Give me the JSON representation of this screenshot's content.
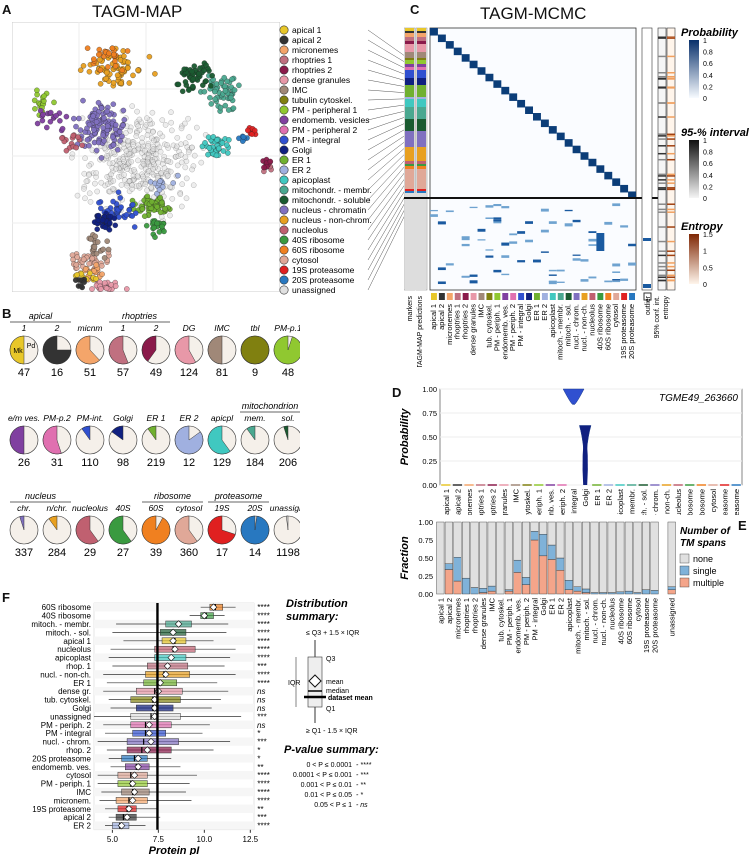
{
  "panel_letters": {
    "A": "A",
    "B": "B",
    "C": "C",
    "D": "D",
    "E": "E",
    "F": "F"
  },
  "tagm_map_title": "TAGM-MAP",
  "tagm_mcmc_title": "TAGM-MCMC",
  "legend": [
    {
      "label": "apical 1",
      "color": "#e8c72a"
    },
    {
      "label": "apical 2",
      "color": "#333333"
    },
    {
      "label": "micronemes",
      "color": "#f4a56a"
    },
    {
      "label": "rhoptries 1",
      "color": "#c07080"
    },
    {
      "label": "rhoptries 2",
      "color": "#8a1a4a"
    },
    {
      "label": "dense granules",
      "color": "#e898a8"
    },
    {
      "label": "IMC",
      "color": "#a08878"
    },
    {
      "label": "tubulin cytoskel.",
      "color": "#808010"
    },
    {
      "label": "PM - peripheral 1",
      "color": "#90c830"
    },
    {
      "label": "endomemb. vesicles",
      "color": "#8040a0"
    },
    {
      "label": "PM - peripheral 2",
      "color": "#e070b0"
    },
    {
      "label": "PM - integral",
      "color": "#3050d0"
    },
    {
      "label": "Golgi",
      "color": "#102080"
    },
    {
      "label": "ER 1",
      "color": "#70b030"
    },
    {
      "label": "ER 2",
      "color": "#a0b0e0"
    },
    {
      "label": "apicoplast",
      "color": "#40c8c0"
    },
    {
      "label": "mitochondr. - membr.",
      "color": "#4aa890"
    },
    {
      "label": "mitochondr. - soluble",
      "color": "#1a5a30"
    },
    {
      "label": "nucleus - chromatin",
      "color": "#8070c0"
    },
    {
      "label": "nucleus - non-chrom.",
      "color": "#e8a020"
    },
    {
      "label": "nucleolus",
      "color": "#c06070"
    },
    {
      "label": "40S ribosome",
      "color": "#3a9a40"
    },
    {
      "label": "60S ribosome",
      "color": "#f08020"
    },
    {
      "label": "cytosol",
      "color": "#e0a898"
    },
    {
      "label": "19S proteasome",
      "color": "#e02020"
    },
    {
      "label": "20S proteasome",
      "color": "#2878c0"
    },
    {
      "label": "unassigned",
      "color": "#e0e0e0"
    }
  ],
  "panel_b": {
    "pies": [
      {
        "label": "1",
        "count": "47",
        "color": "#e8c72a",
        "frac": 0.5,
        "inner": [
          "Mk",
          "Pd"
        ]
      },
      {
        "label": "2",
        "count": "16",
        "color": "#333333",
        "frac": 0.75
      },
      {
        "label": "micnm",
        "count": "51",
        "color": "#f4a56a",
        "frac": 0.62
      },
      {
        "label": "1",
        "count": "57",
        "color": "#c07080",
        "frac": 0.56
      },
      {
        "label": "2",
        "count": "49",
        "color": "#8a1a4a",
        "frac": 0.4
      },
      {
        "label": "DG",
        "count": "124",
        "color": "#e898a8",
        "frac": 0.58
      },
      {
        "label": "IMC",
        "count": "81",
        "color": "#a08878",
        "frac": 0.5
      },
      {
        "label": "tbl",
        "count": "9",
        "color": "#808010",
        "frac": 1.0
      },
      {
        "label": "PM-p.1",
        "count": "48",
        "color": "#90c830",
        "frac": 0.95
      },
      {
        "label": "e/m ves.",
        "count": "26",
        "color": "#8040a0",
        "frac": 0.5
      },
      {
        "label": "PM-p.2",
        "count": "31",
        "color": "#e070b0",
        "frac": 0.55
      },
      {
        "label": "PM-int.",
        "count": "110",
        "color": "#3050d0",
        "frac": 0.1
      },
      {
        "label": "Golgi",
        "count": "98",
        "color": "#102080",
        "frac": 0.15
      },
      {
        "label": "ER 1",
        "count": "219",
        "color": "#70b030",
        "frac": 0.1
      },
      {
        "label": "ER 2",
        "count": "12",
        "color": "#a0b0e0",
        "frac": 0.85
      },
      {
        "label": "apicpl",
        "count": "129",
        "color": "#40c8c0",
        "frac": 0.6
      },
      {
        "label": "mem.",
        "count": "184",
        "color": "#4aa890",
        "frac": 0.1
      },
      {
        "label": "sol.",
        "count": "206",
        "color": "#1a5a30",
        "frac": 0.05
      },
      {
        "label": "chr.",
        "count": "337",
        "color": "#8070c0",
        "frac": 0.05
      },
      {
        "label": "n/chr.",
        "count": "284",
        "color": "#e8a020",
        "frac": 0.1
      },
      {
        "label": "nucleolus",
        "count": "29",
        "color": "#c06070",
        "frac": 0.6
      },
      {
        "label": "40S",
        "count": "27",
        "color": "#3a9a40",
        "frac": 0.6
      },
      {
        "label": "60S",
        "count": "39",
        "color": "#f08020",
        "frac": 0.92
      },
      {
        "label": "cytosol",
        "count": "360",
        "color": "#e0a898",
        "frac": 0.6
      },
      {
        "label": "19S",
        "count": "17",
        "color": "#e02020",
        "frac": 0.7
      },
      {
        "label": "20S",
        "count": "14",
        "color": "#2878c0",
        "frac": 0.98
      },
      {
        "label": "unassign.",
        "count": "1198",
        "color": "#e0e0e0",
        "frac": 0.02
      }
    ],
    "groups": {
      "apical": "apical",
      "rhoptries": "rhoptries",
      "mitochondrion": "mitochondrion",
      "nucleus": "nucleus",
      "ribosome": "ribosome",
      "proteasome": "proteasome"
    }
  },
  "panel_c": {
    "bottom_labels": [
      "apical 1",
      "apical 2",
      "micronemes",
      "rhoptries 1",
      "rhoptries 2",
      "dense granules",
      "IMC",
      "tub. cytoskel.",
      "PM - periph. 1",
      "endomemb. ves.",
      "PM - periph. 2",
      "PM - integral",
      "Golgi",
      "ER 1",
      "ER 2",
      "apicoplast",
      "mitoch. - membr.",
      "mitoch. - sol.",
      "nucl. - chrom.",
      "nucl. - non-ch.",
      "nucleolus",
      "40S ribosome",
      "60S ribosome",
      "cytosol",
      "19S proteasome",
      "20S proteasome"
    ],
    "left_labels": [
      "markers",
      "TAGM-MAP predictions"
    ],
    "right_labels": [
      "outlier",
      "95% conf. int.",
      "entropy"
    ],
    "legend": {
      "prob_title": "Probability",
      "prob_ticks": [
        "1",
        "0.8",
        "0.6",
        "0.4",
        "0.2",
        "0"
      ],
      "ci_title": "95-% interval",
      "ci_ticks": [
        "1",
        "0.8",
        "0.6",
        "0.4",
        "0.2",
        "0"
      ],
      "ent_title": "Entropy",
      "ent_ticks": [
        "1.5",
        "1",
        "0.5",
        "0"
      ]
    }
  },
  "chart_data": [
    {
      "type": "violin",
      "id": "D",
      "title": "TGME49_263660",
      "ylabel": "Probability",
      "ylim": [
        0,
        1
      ],
      "yticks": [
        "1.00",
        "0.75",
        "0.50",
        "0.25",
        "0.00"
      ],
      "categories": [
        "apical 1",
        "apical 2",
        "micronemes",
        "rhoptries 1",
        "rhoptries 2",
        "dense granules",
        "IMC",
        "tub. cytoskel.",
        "PM - periph. 1",
        "endomemb. ves.",
        "PM - periph. 2",
        "PM - integral",
        "Golgi",
        "ER 1",
        "ER 2",
        "apicoplast",
        "mitoch. - membr.",
        "mitoch. - sol.",
        "nucl. - chrom.",
        "nucl. - non-ch.",
        "nucleolus",
        "40S ribosome",
        "60S ribosome",
        "cytosol",
        "19S proteasome",
        "20S proteasome"
      ],
      "peaks": {
        "PM - integral": [
          0.85,
          1.0
        ],
        "Golgi": [
          0.0,
          0.62
        ]
      }
    },
    {
      "type": "bar",
      "id": "E",
      "stacked": true,
      "ylabel": "Fraction",
      "ylim": [
        0,
        1
      ],
      "yticks": [
        "1.00",
        "0.75",
        "0.50",
        "0.25",
        "0.00"
      ],
      "legend_title": "Number of TM spans",
      "categories": [
        "apical 1",
        "apical 2",
        "micronemes",
        "rhoptries 1",
        "rhoptries 2",
        "dense granules",
        "IMC",
        "tub. cytoskel.",
        "PM - periph. 1",
        "endomemb. ves.",
        "PM - periph. 2",
        "PM - integral",
        "Golgi",
        "ER 1",
        "ER 2",
        "apicoplast",
        "mitoch. - membr.",
        "mitoch. - sol.",
        "nucl. - chrom.",
        "nucl. - non-ch.",
        "nucleolus",
        "40S ribosome",
        "60S ribosome",
        "cytosol",
        "19S proteasome",
        "20S proteasome",
        "unassigned"
      ],
      "series": [
        {
          "name": "multiple",
          "color": "#f4a58a",
          "values": [
            0.0,
            0.34,
            0.18,
            0.0,
            0.0,
            0.02,
            0.04,
            0.0,
            0.04,
            0.3,
            0.13,
            0.75,
            0.53,
            0.48,
            0.33,
            0.06,
            0.04,
            0.02,
            0.0,
            0.0,
            0.0,
            0.0,
            0.0,
            0.0,
            0.0,
            0.0,
            0.06
          ]
        },
        {
          "name": "single",
          "color": "#7fb2d9",
          "values": [
            0.0,
            0.08,
            0.33,
            0.22,
            0.09,
            0.06,
            0.07,
            0.0,
            0.02,
            0.17,
            0.1,
            0.12,
            0.3,
            0.2,
            0.17,
            0.13,
            0.06,
            0.05,
            0.02,
            0.02,
            0.02,
            0.03,
            0.04,
            0.02,
            0.06,
            0.05,
            0.04
          ]
        },
        {
          "name": "none",
          "color": "#e0e0e0",
          "values": [
            1.0,
            0.58,
            0.49,
            0.78,
            0.91,
            0.92,
            0.89,
            1.0,
            0.94,
            0.53,
            0.77,
            0.13,
            0.17,
            0.32,
            0.5,
            0.81,
            0.9,
            0.93,
            0.98,
            0.98,
            0.98,
            0.97,
            0.96,
            0.98,
            0.94,
            0.95,
            0.9
          ]
        }
      ]
    },
    {
      "type": "boxplot",
      "id": "F",
      "xlabel": "Protein pI",
      "xlim": [
        4,
        12.7
      ],
      "xticks": [
        "5.0",
        "7.5",
        "10.0",
        "12.5"
      ],
      "dataset_mean": 7.45,
      "rows": [
        {
          "name": "60S ribosome",
          "color": "#f08020",
          "q1": 10.3,
          "median": 10.6,
          "q3": 11.0,
          "mean": 10.5,
          "wlo": 9.8,
          "whi": 11.7,
          "sig": "****"
        },
        {
          "name": "40S ribosome",
          "color": "#3a9a40",
          "q1": 9.8,
          "median": 10.1,
          "q3": 10.5,
          "mean": 10.0,
          "wlo": 9.2,
          "whi": 11.1,
          "sig": "****"
        },
        {
          "name": "mitoch. - membr.",
          "color": "#4aa890",
          "q1": 7.9,
          "median": 8.6,
          "q3": 9.3,
          "mean": 8.6,
          "wlo": 5.2,
          "whi": 11.3,
          "sig": "****"
        },
        {
          "name": "mitoch. - sol.",
          "color": "#1a5a30",
          "q1": 7.6,
          "median": 8.3,
          "q3": 9.0,
          "mean": 8.3,
          "wlo": 5.0,
          "whi": 11.2,
          "sig": "****"
        },
        {
          "name": "apical 1",
          "color": "#e8c72a",
          "q1": 7.7,
          "median": 8.4,
          "q3": 9.0,
          "mean": 8.3,
          "wlo": 5.6,
          "whi": 10.5,
          "sig": "****"
        },
        {
          "name": "nucleolus",
          "color": "#c06070",
          "q1": 7.3,
          "median": 8.3,
          "q3": 9.5,
          "mean": 8.4,
          "wlo": 4.9,
          "whi": 11.7,
          "sig": "****"
        },
        {
          "name": "apicoplast",
          "color": "#40c8c0",
          "q1": 7.3,
          "median": 8.2,
          "q3": 9.0,
          "mean": 8.2,
          "wlo": 4.8,
          "whi": 11.4,
          "sig": "****"
        },
        {
          "name": "rhop. 1",
          "color": "#c07080",
          "q1": 6.9,
          "median": 8.0,
          "q3": 9.1,
          "mean": 8.0,
          "wlo": 5.0,
          "whi": 11.1,
          "sig": "***"
        },
        {
          "name": "nucl. - non-ch.",
          "color": "#e8a020",
          "q1": 6.8,
          "median": 7.8,
          "q3": 9.2,
          "mean": 7.9,
          "wlo": 4.5,
          "whi": 11.7,
          "sig": "****"
        },
        {
          "name": "ER 1",
          "color": "#70b030",
          "q1": 6.7,
          "median": 7.6,
          "q3": 8.5,
          "mean": 7.6,
          "wlo": 4.7,
          "whi": 10.7,
          "sig": "****"
        },
        {
          "name": "dense gr.",
          "color": "#e898a8",
          "q1": 6.3,
          "median": 7.3,
          "q3": 8.8,
          "mean": 7.5,
          "wlo": 4.5,
          "whi": 11.3,
          "sig": "ns"
        },
        {
          "name": "tub. cytoskel.",
          "color": "#808010",
          "q1": 6.0,
          "median": 7.2,
          "q3": 8.7,
          "mean": 7.3,
          "wlo": 4.8,
          "whi": 10.9,
          "sig": "ns"
        },
        {
          "name": "Golgi",
          "color": "#102080",
          "q1": 6.3,
          "median": 7.2,
          "q3": 8.3,
          "mean": 7.3,
          "wlo": 4.9,
          "whi": 10.4,
          "sig": "ns"
        },
        {
          "name": "unassigned",
          "color": "#e0e0e0",
          "q1": 6.0,
          "median": 7.1,
          "q3": 8.7,
          "mean": 7.3,
          "wlo": 4.0,
          "whi": 12.0,
          "sig": "***"
        },
        {
          "name": "PM - periph. 2",
          "color": "#e070b0",
          "q1": 6.0,
          "median": 6.8,
          "q3": 8.2,
          "mean": 7.0,
          "wlo": 4.5,
          "whi": 10.3,
          "sig": "ns"
        },
        {
          "name": "PM - integral",
          "color": "#3050d0",
          "q1": 6.1,
          "median": 6.8,
          "q3": 7.9,
          "mean": 7.0,
          "wlo": 4.6,
          "whi": 9.9,
          "sig": "*"
        },
        {
          "name": "nucl. - chrom.",
          "color": "#8070c0",
          "q1": 5.8,
          "median": 6.7,
          "q3": 8.6,
          "mean": 7.1,
          "wlo": 4.2,
          "whi": 11.4,
          "sig": "***"
        },
        {
          "name": "rhop. 2",
          "color": "#8a1a4a",
          "q1": 5.8,
          "median": 6.6,
          "q3": 8.2,
          "mean": 6.9,
          "wlo": 4.7,
          "whi": 10.5,
          "sig": "*"
        },
        {
          "name": "20S proteasome",
          "color": "#2878c0",
          "q1": 5.5,
          "median": 6.2,
          "q3": 6.9,
          "mean": 6.4,
          "wlo": 4.8,
          "whi": 8.2,
          "sig": "*"
        },
        {
          "name": "endomemb. ves.",
          "color": "#8040a0",
          "q1": 5.7,
          "median": 6.3,
          "q3": 7.0,
          "mean": 6.4,
          "wlo": 4.9,
          "whi": 8.7,
          "sig": "**"
        },
        {
          "name": "cytosol",
          "color": "#e0a898",
          "q1": 5.3,
          "median": 6.0,
          "q3": 6.9,
          "mean": 6.2,
          "wlo": 4.2,
          "whi": 9.6,
          "sig": "****"
        },
        {
          "name": "PM - periph. 1",
          "color": "#90c830",
          "q1": 5.3,
          "median": 6.0,
          "q3": 6.9,
          "mean": 6.1,
          "wlo": 4.2,
          "whi": 9.2,
          "sig": "****"
        },
        {
          "name": "IMC",
          "color": "#a08878",
          "q1": 5.5,
          "median": 6.1,
          "q3": 7.0,
          "mean": 6.2,
          "wlo": 4.4,
          "whi": 9.0,
          "sig": "****"
        },
        {
          "name": "micronem.",
          "color": "#f4a56a",
          "q1": 5.2,
          "median": 5.9,
          "q3": 6.9,
          "mean": 6.1,
          "wlo": 4.3,
          "whi": 9.3,
          "sig": "****"
        },
        {
          "name": "19S proteasome",
          "color": "#e02020",
          "q1": 5.3,
          "median": 5.8,
          "q3": 6.3,
          "mean": 5.9,
          "wlo": 4.6,
          "whi": 7.5,
          "sig": "**"
        },
        {
          "name": "apical 2",
          "color": "#333333",
          "q1": 5.2,
          "median": 5.6,
          "q3": 6.3,
          "mean": 5.8,
          "wlo": 4.8,
          "whi": 7.6,
          "sig": "***"
        },
        {
          "name": "ER 2",
          "color": "#a0b0e0",
          "q1": 5.0,
          "median": 5.4,
          "q3": 5.9,
          "mean": 5.5,
          "wlo": 4.6,
          "whi": 6.8,
          "sig": "****"
        }
      ]
    }
  ],
  "panel_f_summary": {
    "dist_title": "Distribution",
    "dist_title2": "summary:",
    "upper": "≤ Q3 + 1.5 × IQR",
    "q3": "Q3",
    "iqr": "IQR",
    "mean": "mean",
    "median": "median",
    "dataset_mean": "dataset mean",
    "q1": "Q1",
    "lower": "≥ Q1 - 1.5 × IQR",
    "p_title": "P-value summary:",
    "p_rows": [
      {
        "range": "0 < P ≤ 0.0001",
        "code": "- ****"
      },
      {
        "range": "0.0001 < P ≤ 0.001",
        "code": "- ***"
      },
      {
        "range": "0.001 < P ≤ 0.01",
        "code": "- **"
      },
      {
        "range": "0.01 < P ≤ 0.05",
        "code": "- *"
      },
      {
        "range": "0.05 < P ≤ 1",
        "code": "- ns"
      }
    ]
  }
}
